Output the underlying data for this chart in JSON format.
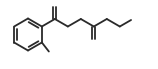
{
  "bg_color": "#ffffff",
  "line_color": "#2a2a2a",
  "line_width": 1.3,
  "figsize": [
    1.58,
    0.69
  ],
  "dpi": 100,
  "xlim": [
    0,
    158
  ],
  "ylim": [
    0,
    69
  ]
}
